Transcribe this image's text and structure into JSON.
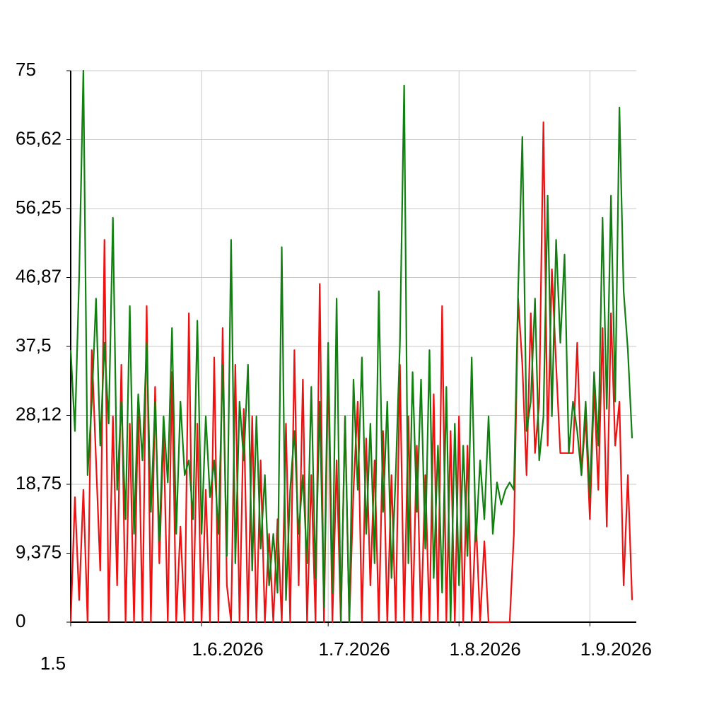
{
  "chart_data": {
    "type": "line",
    "x": [
      0,
      1,
      2,
      3,
      4,
      5,
      6,
      7,
      8,
      9,
      10,
      11,
      12,
      13,
      14,
      15,
      16,
      17,
      18,
      19,
      20,
      21,
      22,
      23,
      24,
      25,
      26,
      27,
      28,
      29,
      30,
      31,
      32,
      33,
      34,
      35,
      36,
      37,
      38,
      39,
      40,
      41,
      42,
      43,
      44,
      45,
      46,
      47,
      48,
      49,
      50,
      51,
      52,
      53,
      54,
      55,
      56,
      57,
      58,
      59,
      60,
      61,
      62,
      63,
      64,
      65,
      66,
      67,
      68,
      69,
      70,
      71,
      72,
      73,
      74,
      75,
      76,
      77,
      78,
      79,
      80,
      81,
      82,
      83,
      84,
      85,
      86,
      87,
      88,
      89,
      90,
      91,
      92,
      93,
      94,
      95,
      96,
      97,
      98,
      99,
      100,
      101,
      102,
      103,
      104,
      105,
      106,
      107,
      108,
      109,
      110,
      111,
      112,
      113,
      114,
      115,
      116,
      117,
      118,
      119,
      120,
      121,
      122,
      123,
      124,
      125,
      126,
      127,
      128,
      129,
      130,
      131,
      132,
      133
    ],
    "series": [
      {
        "color": "#ee1111",
        "values": [
          0,
          17,
          3,
          18,
          0,
          37,
          22,
          7,
          52,
          0,
          28,
          5,
          35,
          0,
          27,
          0,
          30,
          0,
          43,
          0,
          32,
          8,
          26,
          0,
          34,
          0,
          13,
          0,
          42,
          0,
          27,
          0,
          18,
          0,
          36,
          0,
          40,
          5,
          0,
          35,
          0,
          29,
          0,
          28,
          0,
          22,
          0,
          12,
          0,
          14,
          0,
          27,
          0,
          37,
          5,
          33,
          0,
          20,
          0,
          46,
          0,
          35,
          0,
          22,
          0,
          28,
          0,
          18,
          30,
          0,
          25,
          5,
          22,
          0,
          26,
          0,
          20,
          0,
          35,
          0,
          28,
          0,
          24,
          0,
          20,
          0,
          31,
          0,
          43,
          0,
          26,
          0,
          28,
          0,
          24,
          0,
          14,
          0,
          11,
          0,
          0,
          0,
          0,
          0,
          0,
          12,
          44,
          35,
          20,
          42,
          23,
          30,
          68,
          24,
          48,
          35,
          23,
          23,
          23,
          23,
          38,
          20,
          28,
          14,
          32,
          18,
          40,
          13,
          42,
          24,
          30,
          5,
          20,
          3
        ]
      },
      {
        "color": "#118011",
        "values": [
          37,
          26,
          47,
          75,
          20,
          30,
          44,
          24,
          38,
          27,
          55,
          18,
          30,
          14,
          43,
          12,
          31,
          22,
          38,
          15,
          30,
          11,
          28,
          19,
          40,
          12,
          30,
          20,
          22,
          14,
          41,
          12,
          28,
          17,
          22,
          12,
          35,
          9,
          52,
          8,
          30,
          22,
          35,
          7,
          28,
          10,
          20,
          5,
          12,
          4,
          51,
          3,
          18,
          26,
          12,
          20,
          8,
          32,
          6,
          30,
          2,
          38,
          4,
          44,
          0,
          28,
          0,
          33,
          18,
          36,
          12,
          27,
          8,
          45,
          15,
          30,
          6,
          20,
          38,
          73,
          8,
          34,
          15,
          33,
          10,
          37,
          6,
          24,
          4,
          32,
          0,
          27,
          5,
          24,
          9,
          36,
          11,
          22,
          14,
          28,
          12,
          19,
          16,
          18,
          19,
          18,
          45,
          66,
          26,
          30,
          44,
          22,
          28,
          58,
          28,
          52,
          38,
          50,
          23,
          30,
          26,
          20,
          30,
          17,
          34,
          24,
          55,
          29,
          58,
          30,
          70,
          45,
          37,
          25
        ]
      }
    ],
    "xlim": [
      0,
      134
    ],
    "xticks": [
      {
        "value": 0,
        "label": "1.5"
      },
      {
        "value": 31,
        "label": "1.6.2026"
      },
      {
        "value": 61,
        "label": "1.7.2026"
      },
      {
        "value": 92,
        "label": "1.8.2026"
      },
      {
        "value": 123,
        "label": "1.9.2026"
      }
    ],
    "ylim": [
      0,
      75
    ],
    "yticks": [
      0,
      {
        "value": 9.375,
        "label": "9,375"
      },
      {
        "value": 18.75,
        "label": "18,75"
      },
      {
        "value": 28.125,
        "label": "28,12"
      },
      {
        "value": 37.5,
        "label": "37,5"
      },
      {
        "value": 46.875,
        "label": "46,87"
      },
      {
        "value": 56.25,
        "label": "56,25"
      },
      {
        "value": 65.625,
        "label": "65,62"
      },
      75
    ],
    "grid": true
  }
}
